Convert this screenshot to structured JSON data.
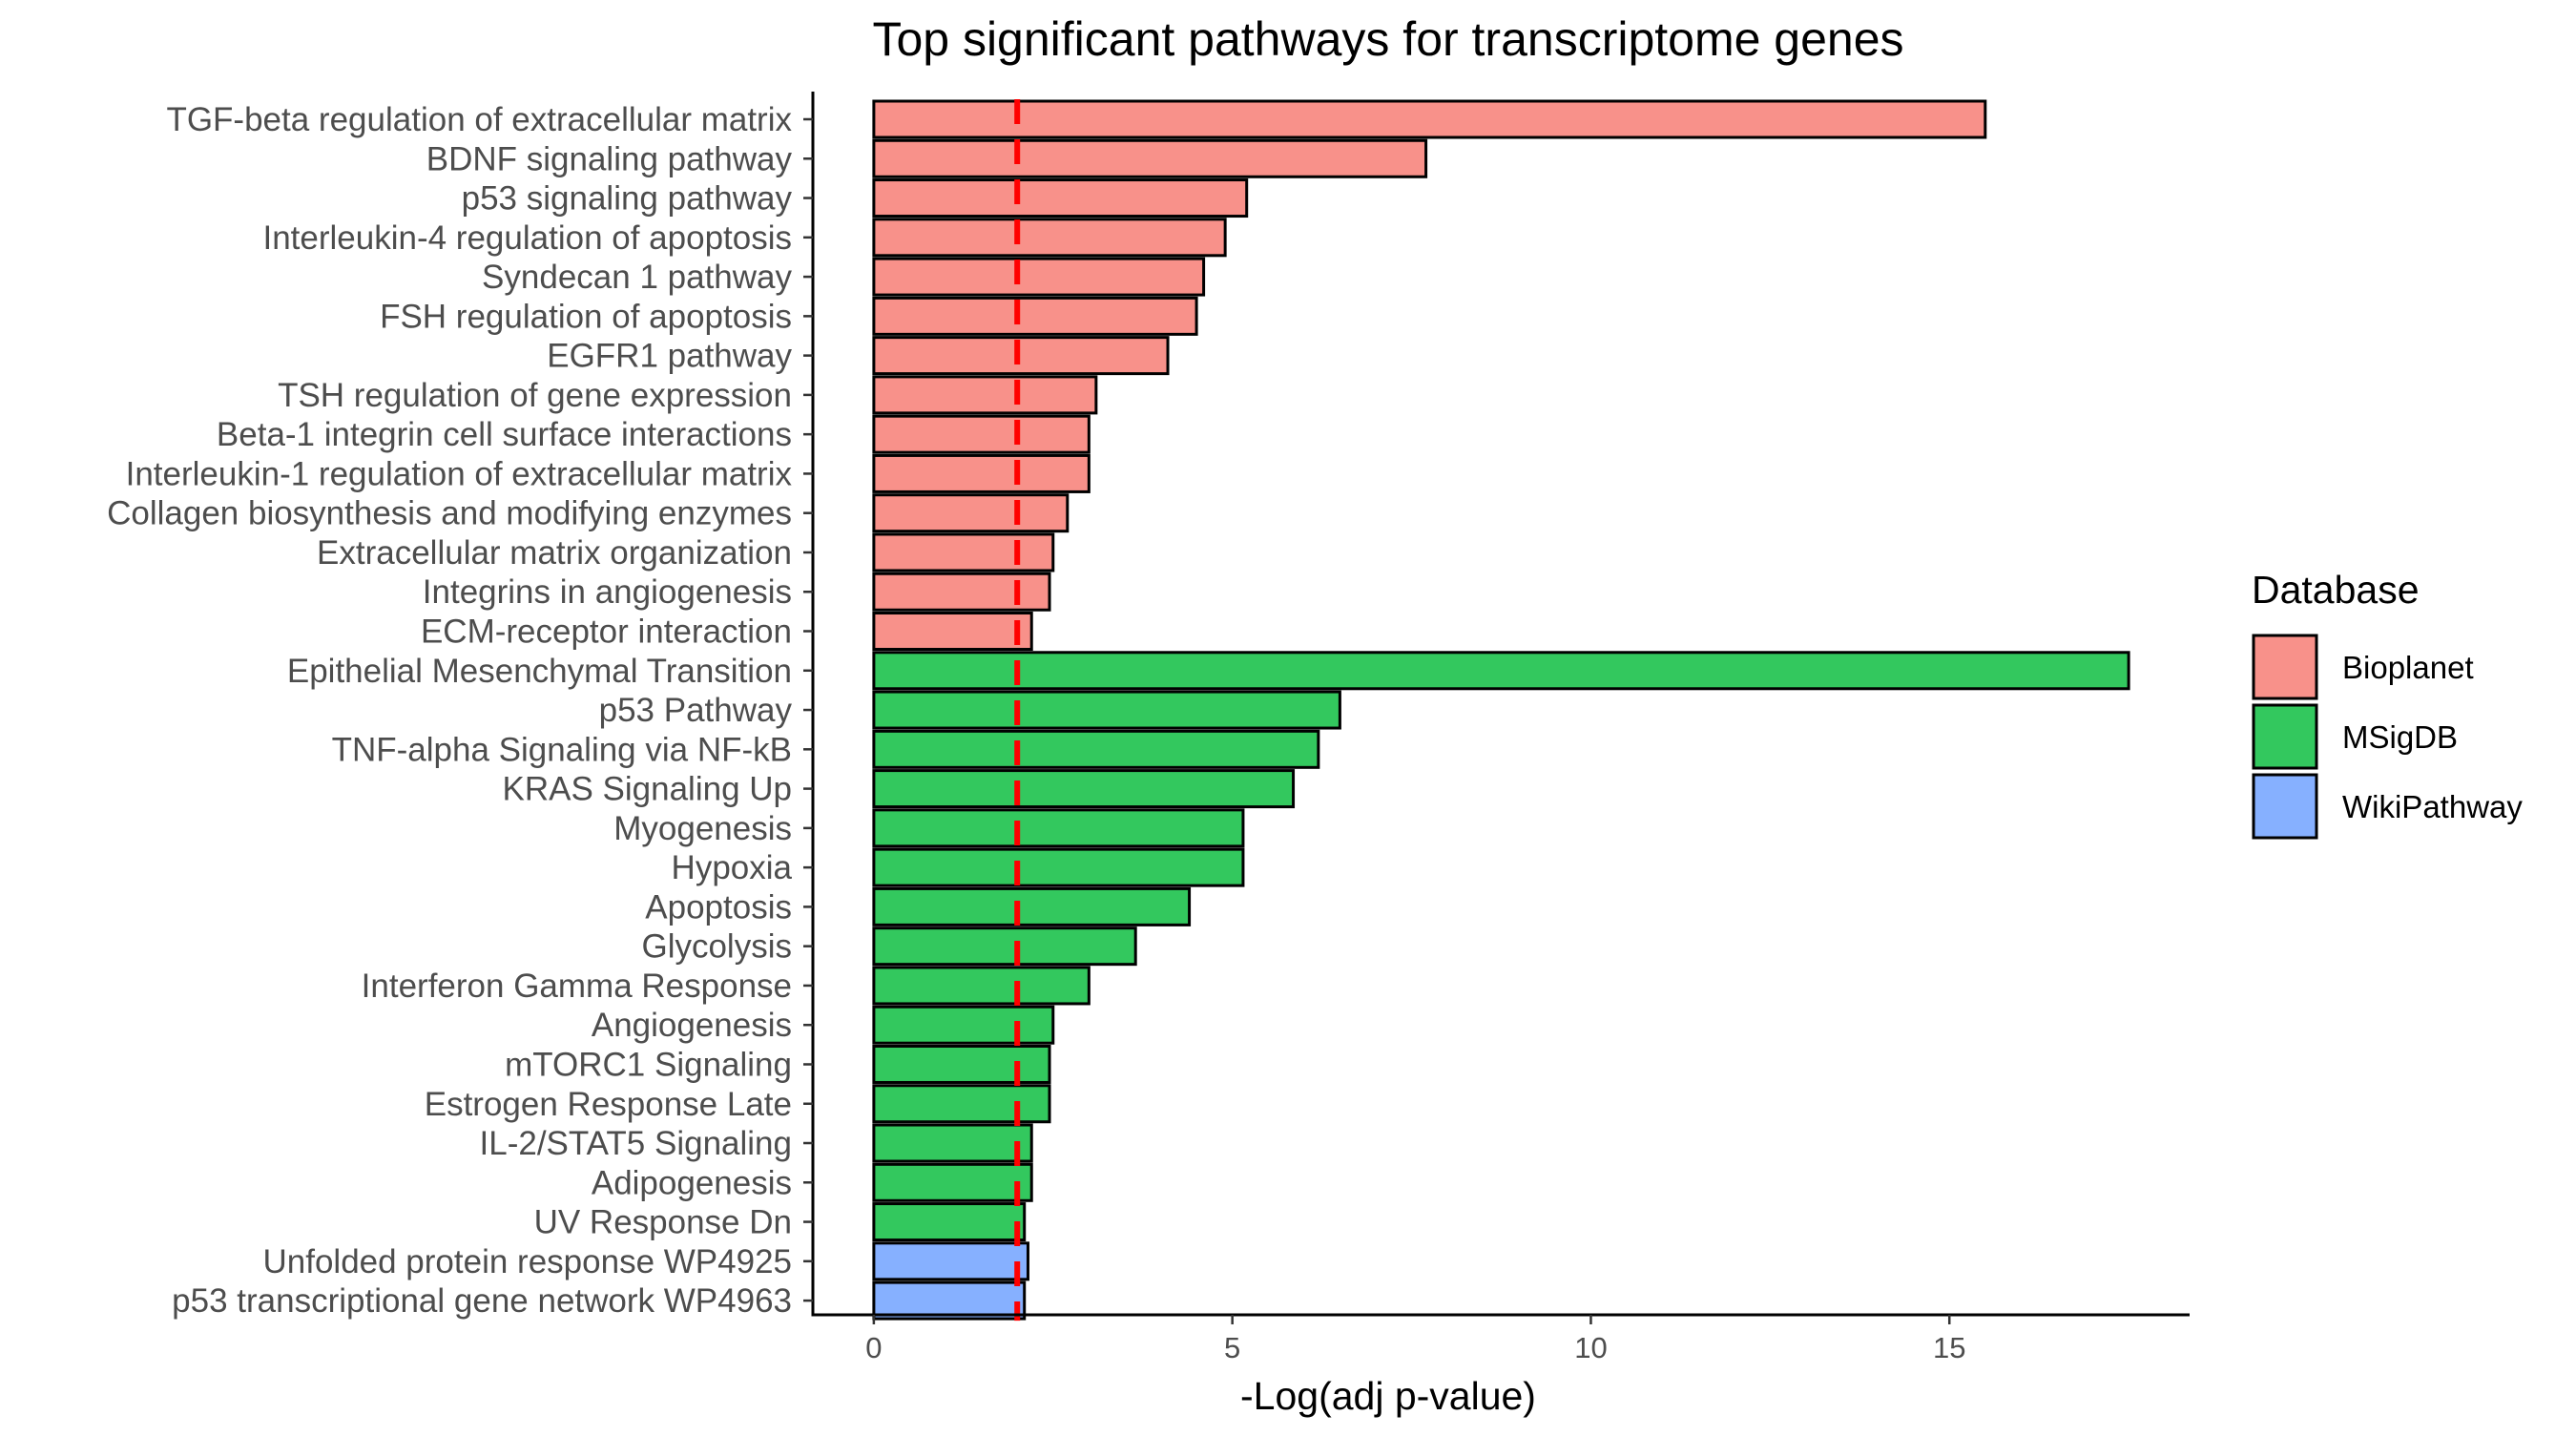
{
  "chart_data": {
    "type": "bar",
    "orientation": "horizontal",
    "title": "Top significant pathways for transcriptome genes",
    "xlabel": "-Log(adj p-value)",
    "ylabel": "",
    "xlim": [
      -0.85,
      18.35
    ],
    "xticks": [
      0,
      5,
      10,
      15
    ],
    "reference_line": {
      "x": 2.0,
      "color": "#ff0000",
      "style": "dashed"
    },
    "grid": false,
    "legend": {
      "title": "Database",
      "position": "right",
      "entries": [
        {
          "label": "Bioplanet",
          "color": "#f8918a"
        },
        {
          "label": "MSigDB",
          "color": "#33c85e"
        },
        {
          "label": "WikiPathway",
          "color": "#86b0ff"
        }
      ]
    },
    "bars": [
      {
        "label": "TGF-beta regulation of extracellular matrix",
        "value": 15.5,
        "group": "Bioplanet"
      },
      {
        "label": "BDNF signaling pathway",
        "value": 7.7,
        "group": "Bioplanet"
      },
      {
        "label": "p53 signaling pathway",
        "value": 5.2,
        "group": "Bioplanet"
      },
      {
        "label": "Interleukin-4 regulation of apoptosis",
        "value": 4.9,
        "group": "Bioplanet"
      },
      {
        "label": "Syndecan 1 pathway",
        "value": 4.6,
        "group": "Bioplanet"
      },
      {
        "label": "FSH regulation of apoptosis",
        "value": 4.5,
        "group": "Bioplanet"
      },
      {
        "label": "EGFR1 pathway",
        "value": 4.1,
        "group": "Bioplanet"
      },
      {
        "label": "TSH regulation of gene expression",
        "value": 3.1,
        "group": "Bioplanet"
      },
      {
        "label": "Beta-1 integrin cell surface interactions",
        "value": 3.0,
        "group": "Bioplanet"
      },
      {
        "label": "Interleukin-1 regulation of extracellular matrix",
        "value": 3.0,
        "group": "Bioplanet"
      },
      {
        "label": "Collagen biosynthesis and modifying enzymes",
        "value": 2.7,
        "group": "Bioplanet"
      },
      {
        "label": "Extracellular matrix organization",
        "value": 2.5,
        "group": "Bioplanet"
      },
      {
        "label": "Integrins in angiogenesis",
        "value": 2.45,
        "group": "Bioplanet"
      },
      {
        "label": "ECM-receptor interaction",
        "value": 2.2,
        "group": "Bioplanet"
      },
      {
        "label": "Epithelial Mesenchymal Transition",
        "value": 17.5,
        "group": "MSigDB"
      },
      {
        "label": "p53 Pathway",
        "value": 6.5,
        "group": "MSigDB"
      },
      {
        "label": "TNF-alpha Signaling via NF-kB",
        "value": 6.2,
        "group": "MSigDB"
      },
      {
        "label": "KRAS Signaling Up",
        "value": 5.85,
        "group": "MSigDB"
      },
      {
        "label": "Myogenesis",
        "value": 5.15,
        "group": "MSigDB"
      },
      {
        "label": "Hypoxia",
        "value": 5.15,
        "group": "MSigDB"
      },
      {
        "label": "Apoptosis",
        "value": 4.4,
        "group": "MSigDB"
      },
      {
        "label": "Glycolysis",
        "value": 3.65,
        "group": "MSigDB"
      },
      {
        "label": "Interferon Gamma Response",
        "value": 3.0,
        "group": "MSigDB"
      },
      {
        "label": "Angiogenesis",
        "value": 2.5,
        "group": "MSigDB"
      },
      {
        "label": "mTORC1 Signaling",
        "value": 2.45,
        "group": "MSigDB"
      },
      {
        "label": "Estrogen Response Late",
        "value": 2.45,
        "group": "MSigDB"
      },
      {
        "label": "IL-2/STAT5 Signaling",
        "value": 2.2,
        "group": "MSigDB"
      },
      {
        "label": "Adipogenesis",
        "value": 2.2,
        "group": "MSigDB"
      },
      {
        "label": "UV Response Dn",
        "value": 2.1,
        "group": "MSigDB"
      },
      {
        "label": "Unfolded protein response WP4925",
        "value": 2.15,
        "group": "WikiPathway"
      },
      {
        "label": "p53 transcriptional gene network WP4963",
        "value": 2.1,
        "group": "WikiPathway"
      }
    ]
  }
}
